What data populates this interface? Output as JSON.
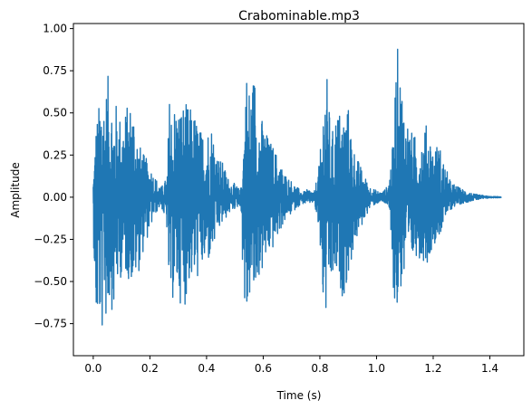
{
  "chart_data": {
    "type": "line",
    "title": "Crabominable.mp3",
    "xlabel": "Time (s)",
    "ylabel": "Amplitude",
    "xlim": [
      -0.07,
      1.52
    ],
    "ylim": [
      -0.94,
      1.03
    ],
    "xticks": [
      0.0,
      0.2,
      0.4,
      0.6,
      0.8,
      1.0,
      1.2,
      1.4
    ],
    "xtick_labels": [
      "0.0",
      "0.2",
      "0.4",
      "0.6",
      "0.8",
      "1.0",
      "1.2",
      "1.4"
    ],
    "yticks": [
      -0.75,
      -0.5,
      -0.25,
      0.0,
      0.25,
      0.5,
      0.75,
      1.0
    ],
    "ytick_labels": [
      "−0.75",
      "−0.50",
      "−0.25",
      "0.00",
      "0.25",
      "0.50",
      "0.75",
      "1.00"
    ],
    "grid": false,
    "line_color": "#1f77b4",
    "series": [
      {
        "name": "",
        "envelope_t": [
          0.0,
          0.01,
          0.02,
          0.03,
          0.04,
          0.05,
          0.06,
          0.07,
          0.08,
          0.09,
          0.1,
          0.12,
          0.14,
          0.16,
          0.18,
          0.2,
          0.22,
          0.24,
          0.26,
          0.27,
          0.28,
          0.29,
          0.3,
          0.32,
          0.34,
          0.36,
          0.38,
          0.4,
          0.42,
          0.44,
          0.46,
          0.48,
          0.5,
          0.52,
          0.53,
          0.54,
          0.55,
          0.56,
          0.57,
          0.58,
          0.6,
          0.62,
          0.64,
          0.66,
          0.68,
          0.7,
          0.72,
          0.74,
          0.76,
          0.78,
          0.8,
          0.81,
          0.82,
          0.83,
          0.84,
          0.86,
          0.88,
          0.9,
          0.92,
          0.94,
          0.96,
          0.98,
          1.0,
          1.02,
          1.04,
          1.06,
          1.07,
          1.08,
          1.1,
          1.12,
          1.14,
          1.16,
          1.18,
          1.2,
          1.22,
          1.24,
          1.26,
          1.28,
          1.3,
          1.32,
          1.34,
          1.36,
          1.38,
          1.4,
          1.44
        ],
        "envelope_max": [
          0.12,
          0.45,
          0.55,
          0.76,
          0.6,
          0.72,
          0.73,
          0.55,
          0.57,
          0.52,
          0.48,
          0.55,
          0.6,
          0.33,
          0.25,
          0.2,
          0.12,
          0.06,
          0.12,
          0.65,
          0.5,
          0.6,
          0.55,
          0.57,
          0.54,
          0.5,
          0.4,
          0.42,
          0.45,
          0.25,
          0.2,
          0.1,
          0.08,
          0.04,
          0.35,
          0.8,
          0.68,
          0.71,
          0.77,
          0.56,
          0.45,
          0.35,
          0.3,
          0.2,
          0.14,
          0.1,
          0.06,
          0.03,
          0.05,
          0.03,
          0.22,
          0.55,
          0.82,
          0.62,
          0.35,
          0.55,
          0.5,
          0.55,
          0.3,
          0.2,
          0.12,
          0.06,
          0.04,
          0.03,
          0.07,
          0.35,
          0.95,
          0.82,
          0.55,
          0.4,
          0.36,
          0.38,
          0.45,
          0.3,
          0.33,
          0.2,
          0.1,
          0.07,
          0.05,
          0.04,
          0.02,
          0.015,
          0.01,
          0.005,
          0.003
        ],
        "envelope_min": [
          -0.2,
          -0.82,
          -0.75,
          -0.87,
          -0.62,
          -0.87,
          -0.55,
          -0.75,
          -0.52,
          -0.57,
          -0.45,
          -0.48,
          -0.52,
          -0.45,
          -0.3,
          -0.2,
          -0.1,
          -0.05,
          -0.2,
          -0.75,
          -0.62,
          -0.57,
          -0.6,
          -0.68,
          -0.5,
          -0.52,
          -0.45,
          -0.42,
          -0.35,
          -0.22,
          -0.15,
          -0.1,
          -0.07,
          -0.05,
          -0.55,
          -0.86,
          -0.62,
          -0.6,
          -0.66,
          -0.5,
          -0.45,
          -0.35,
          -0.3,
          -0.2,
          -0.14,
          -0.1,
          -0.06,
          -0.04,
          -0.04,
          -0.03,
          -0.28,
          -0.65,
          -0.77,
          -0.62,
          -0.55,
          -0.5,
          -0.6,
          -0.5,
          -0.3,
          -0.22,
          -0.12,
          -0.06,
          -0.04,
          -0.03,
          -0.05,
          -0.55,
          -0.82,
          -0.58,
          -0.52,
          -0.42,
          -0.35,
          -0.37,
          -0.4,
          -0.28,
          -0.25,
          -0.15,
          -0.08,
          -0.05,
          -0.04,
          -0.03,
          -0.02,
          -0.015,
          -0.01,
          -0.005,
          -0.003
        ]
      }
    ]
  }
}
